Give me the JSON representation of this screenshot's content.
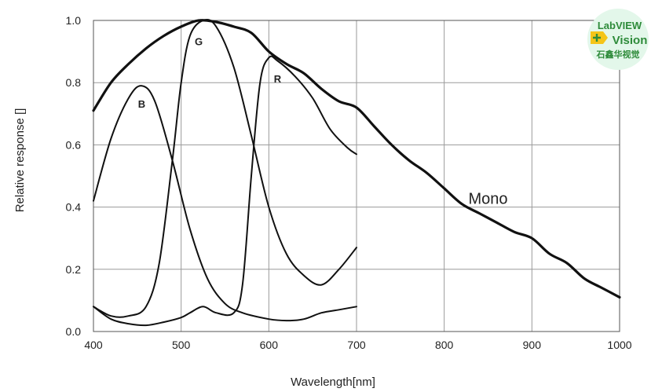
{
  "chart_data": {
    "type": "line",
    "xlabel": "Wavelength[nm]",
    "ylabel": "Relative response []",
    "xlim": [
      400,
      1000
    ],
    "ylim": [
      0,
      1.0
    ],
    "x_ticks": [
      "400",
      "500",
      "600",
      "700",
      "800",
      "900",
      "1000"
    ],
    "y_ticks": [
      "0.0",
      "0.2",
      "0.4",
      "0.6",
      "0.8",
      "1.0"
    ],
    "grid": true,
    "series": [
      {
        "name": "Mono",
        "x": [
          400,
          420,
          440,
          460,
          480,
          500,
          520,
          540,
          560,
          580,
          600,
          620,
          640,
          660,
          680,
          700,
          720,
          740,
          760,
          780,
          800,
          820,
          840,
          860,
          880,
          900,
          920,
          940,
          960,
          980,
          1000
        ],
        "y": [
          0.71,
          0.8,
          0.86,
          0.91,
          0.95,
          0.98,
          1.0,
          0.995,
          0.98,
          0.96,
          0.9,
          0.86,
          0.83,
          0.78,
          0.74,
          0.72,
          0.66,
          0.6,
          0.55,
          0.51,
          0.46,
          0.41,
          0.38,
          0.35,
          0.32,
          0.3,
          0.25,
          0.22,
          0.17,
          0.14,
          0.11
        ]
      },
      {
        "name": "B",
        "x": [
          400,
          420,
          440,
          455,
          470,
          490,
          510,
          530,
          550,
          570,
          600,
          620,
          640,
          660,
          680,
          700
        ],
        "y": [
          0.42,
          0.62,
          0.75,
          0.79,
          0.74,
          0.55,
          0.33,
          0.17,
          0.09,
          0.06,
          0.04,
          0.035,
          0.04,
          0.06,
          0.07,
          0.08
        ]
      },
      {
        "name": "G",
        "x": [
          400,
          420,
          440,
          460,
          475,
          490,
          500,
          510,
          525,
          540,
          560,
          580,
          600,
          620,
          640,
          660,
          680,
          700
        ],
        "y": [
          0.08,
          0.05,
          0.05,
          0.08,
          0.22,
          0.55,
          0.8,
          0.95,
          1.0,
          0.98,
          0.85,
          0.63,
          0.4,
          0.25,
          0.18,
          0.15,
          0.2,
          0.27
        ]
      },
      {
        "name": "R",
        "x": [
          400,
          420,
          440,
          460,
          480,
          500,
          510,
          525,
          540,
          560,
          570,
          580,
          590,
          600,
          610,
          630,
          650,
          670,
          690,
          700
        ],
        "y": [
          0.08,
          0.04,
          0.025,
          0.02,
          0.03,
          0.045,
          0.06,
          0.08,
          0.06,
          0.06,
          0.15,
          0.5,
          0.8,
          0.88,
          0.87,
          0.82,
          0.75,
          0.65,
          0.59,
          0.57
        ]
      }
    ],
    "annotations": [
      "B",
      "G",
      "R",
      "Mono"
    ]
  },
  "logo": {
    "line1": "LabVIEW",
    "line2": "Vision",
    "line3": "石鑫华视觉",
    "bg_color": "#e3f7ea",
    "accent_color": "#f5c518",
    "text_color": "#2e8b3a"
  }
}
